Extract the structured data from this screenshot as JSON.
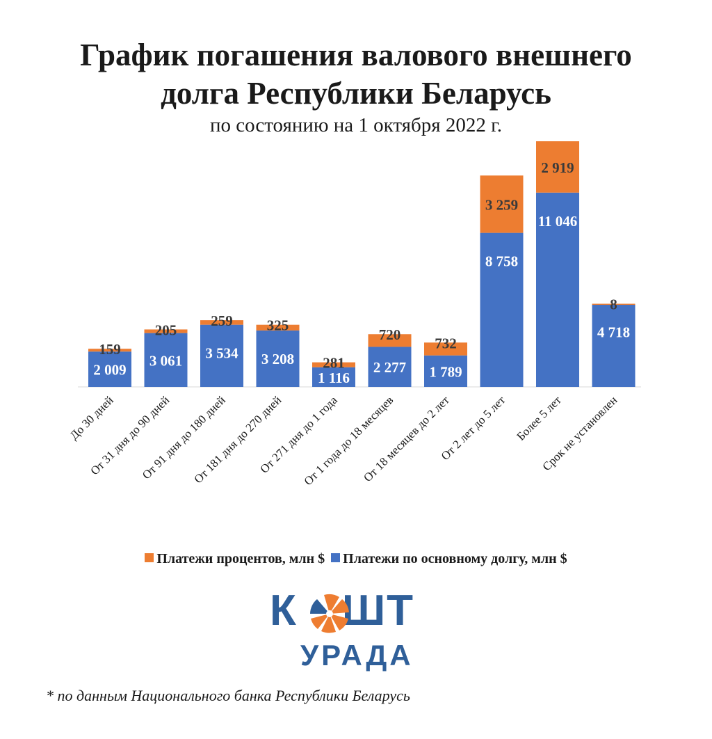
{
  "header": {
    "title_line1": "График погашения валового внешнего",
    "title_line2": "долга Республики Беларусь",
    "subtitle": "по состоянию на 1 октября 2022 г."
  },
  "chart_data": {
    "type": "bar",
    "stacked": true,
    "categories": [
      "До 30 дней",
      "От 31 дня до 90 дней",
      "От 91 дня до 180 дней",
      "От 181 дня до 270 дней",
      "От 271 дня до 1 года",
      "От 1 года до 18 месяцев",
      "От 18 месяцев до 2 лет",
      "От 2 лет до 5 лет",
      "Более 5 лет",
      "Срок не установлен"
    ],
    "series": [
      {
        "name": "Платежи по основному долгу, млн $",
        "color": "#4472c4",
        "values": [
          2009,
          3061,
          3534,
          3208,
          1116,
          2277,
          1789,
          8758,
          11046,
          4718
        ],
        "labels": [
          "2 009",
          "3 061",
          "3 534",
          "3 208",
          "1 116",
          "2 277",
          "1 789",
          "8 758",
          "11 046",
          "4 718"
        ]
      },
      {
        "name": "Платежи процентов, млн $",
        "color": "#ed7d31",
        "values": [
          159,
          205,
          259,
          325,
          281,
          720,
          732,
          3259,
          2919,
          8
        ],
        "labels": [
          "159",
          "205",
          "259",
          "325",
          "281",
          "720",
          "732",
          "3 259",
          "2 919",
          "8"
        ]
      }
    ],
    "legend_position": "bottom",
    "grid": false
  },
  "legend": {
    "items": [
      {
        "label": "Платежи процентов, млн $",
        "color": "#ed7d31"
      },
      {
        "label": "Платежи по основному долгу, млн $",
        "color": "#4472c4"
      }
    ]
  },
  "logo": {
    "line1_left": "К",
    "line1_right": "ШТ",
    "line2": "УРАДА",
    "primary_color": "#2f5f99",
    "accent_color": "#ee7d31",
    "icon": "orange-wheel-icon"
  },
  "footnote": "* по данным Национального банка Республики Беларусь"
}
